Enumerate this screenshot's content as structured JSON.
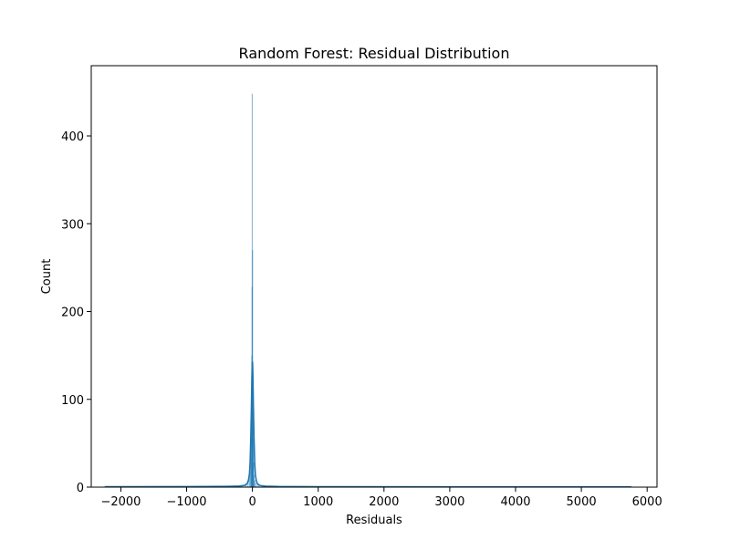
{
  "chart_data": {
    "type": "histogram",
    "title": "Random Forest: Residual Distribution",
    "xlabel": "Residuals",
    "ylabel": "Count",
    "xlim": [
      -2450,
      6150
    ],
    "ylim": [
      0,
      480
    ],
    "x_ticks": [
      {
        "value": -2000,
        "label": "−2000"
      },
      {
        "value": -1000,
        "label": "−1000"
      },
      {
        "value": 0,
        "label": "0"
      },
      {
        "value": 1000,
        "label": "1000"
      },
      {
        "value": 2000,
        "label": "2000"
      },
      {
        "value": 3000,
        "label": "3000"
      },
      {
        "value": 4000,
        "label": "4000"
      },
      {
        "value": 5000,
        "label": "5000"
      },
      {
        "value": 6000,
        "label": "6000"
      }
    ],
    "y_ticks": [
      {
        "value": 0,
        "label": "0"
      },
      {
        "value": 100,
        "label": "100"
      },
      {
        "value": 200,
        "label": "200"
      },
      {
        "value": 300,
        "label": "300"
      },
      {
        "value": 400,
        "label": "400"
      }
    ],
    "bins": [
      {
        "x": -2240,
        "count": 1
      },
      {
        "x": -1500,
        "count": 1
      },
      {
        "x": -900,
        "count": 1
      },
      {
        "x": -400,
        "count": 1
      },
      {
        "x": -150,
        "count": 2
      },
      {
        "x": -100,
        "count": 3
      },
      {
        "x": -75,
        "count": 5
      },
      {
        "x": -50,
        "count": 10
      },
      {
        "x": -35,
        "count": 18
      },
      {
        "x": -25,
        "count": 35
      },
      {
        "x": -18,
        "count": 65
      },
      {
        "x": -12,
        "count": 100
      },
      {
        "x": -8,
        "count": 150
      },
      {
        "x": -5,
        "count": 228
      },
      {
        "x": -2,
        "count": 448
      },
      {
        "x": 1,
        "count": 270
      },
      {
        "x": 4,
        "count": 140
      },
      {
        "x": 8,
        "count": 90
      },
      {
        "x": 12,
        "count": 55
      },
      {
        "x": 18,
        "count": 28
      },
      {
        "x": 25,
        "count": 14
      },
      {
        "x": 35,
        "count": 8
      },
      {
        "x": 50,
        "count": 5
      },
      {
        "x": 75,
        "count": 3
      },
      {
        "x": 100,
        "count": 2
      },
      {
        "x": 150,
        "count": 1
      },
      {
        "x": 500,
        "count": 1
      },
      {
        "x": 1500,
        "count": 1
      },
      {
        "x": 3000,
        "count": 1
      },
      {
        "x": 5750,
        "count": 1
      }
    ],
    "bin_width": 3,
    "kde": {
      "x": [
        -2240,
        -1000,
        -400,
        -200,
        -120,
        -80,
        -60,
        -45,
        -35,
        -25,
        -15,
        -8,
        -3,
        0,
        3,
        8,
        15,
        25,
        35,
        45,
        60,
        80,
        120,
        200,
        400,
        1000,
        3000,
        5760
      ],
      "y": [
        0.5,
        0.6,
        0.8,
        1.2,
        2,
        4,
        8,
        15,
        28,
        55,
        92,
        125,
        141,
        143,
        140,
        124,
        91,
        54,
        27,
        14,
        7,
        3.5,
        1.8,
        1.1,
        0.7,
        0.5,
        0.4,
        0.3
      ]
    },
    "colors": {
      "bar_fill": "#1f77b4",
      "bar_opacity": "0.5",
      "kde_line": "#1f77b4"
    },
    "grid": false
  }
}
